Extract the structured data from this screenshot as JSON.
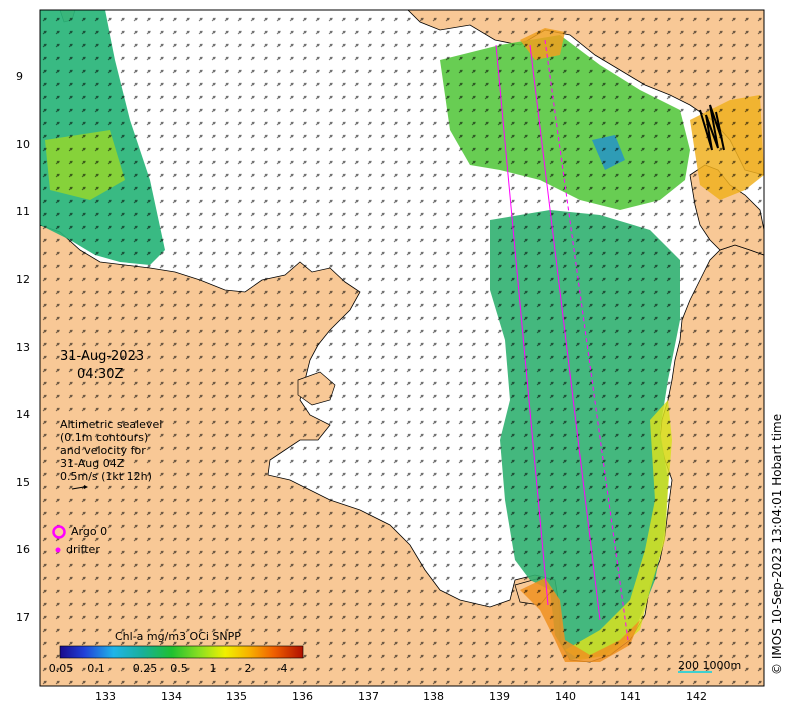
{
  "map": {
    "date": "31-Aug-2023",
    "time": "04:30Z",
    "info_lines": [
      "Altimetric sealevel",
      "(0.1m contours)",
      "and velocity for",
      "31-Aug 04Z",
      "0.5m/s (1kt 12h)"
    ],
    "argo_label": "Argo 0",
    "drifter_label": "drifter",
    "copyright": "© IMOS 10-Sep-2023 13:04:01 Hobart time",
    "scale_label": "200  1000m",
    "colors": {
      "land": "#f8c896",
      "water": "#ffffff",
      "argo": "#ff00ff",
      "drifter": "#ff00ff",
      "track": "#ff00ff",
      "scale_line": "#40d0d0"
    }
  },
  "axes": {
    "lat_ticks": [
      "9",
      "10",
      "11",
      "12",
      "13",
      "14",
      "15",
      "16",
      "17"
    ],
    "lon_ticks": [
      "133",
      "134",
      "135",
      "136",
      "137",
      "138",
      "139",
      "140",
      "141",
      "142"
    ]
  },
  "colorbar": {
    "title": "Chl-a mg/m3 OCi SNPP",
    "ticks": [
      "0.05",
      "0.1",
      "0.25",
      "0.5",
      "1",
      "2",
      "4"
    ]
  }
}
